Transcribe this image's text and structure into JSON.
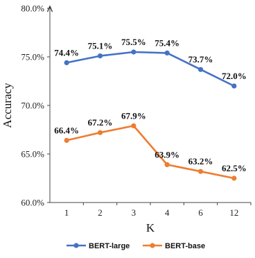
{
  "chart_data": {
    "type": "line",
    "title": "",
    "xlabel": "K",
    "ylabel": "Accuracy",
    "categories": [
      "1",
      "2",
      "3",
      "4",
      "6",
      "12"
    ],
    "y_ticks": [
      "60.0%",
      "65.0%",
      "70.0%",
      "75.0%",
      "80.0%"
    ],
    "ylim": [
      60,
      80
    ],
    "grid": false,
    "legend_position": "bottom",
    "series": [
      {
        "name": "BERT-large",
        "color": "#4472c4",
        "values": [
          74.4,
          75.1,
          75.5,
          75.4,
          73.7,
          72.0
        ],
        "labels": [
          "74.4%",
          "75.1%",
          "75.5%",
          "75.4%",
          "73.7%",
          "72.0%"
        ]
      },
      {
        "name": "BERT-base",
        "color": "#ed7d31",
        "values": [
          66.4,
          67.2,
          67.9,
          63.9,
          63.2,
          62.5
        ],
        "labels": [
          "66.4%",
          "67.2%",
          "67.9%",
          "63.9%",
          "63.2%",
          "62.5%"
        ]
      }
    ]
  }
}
